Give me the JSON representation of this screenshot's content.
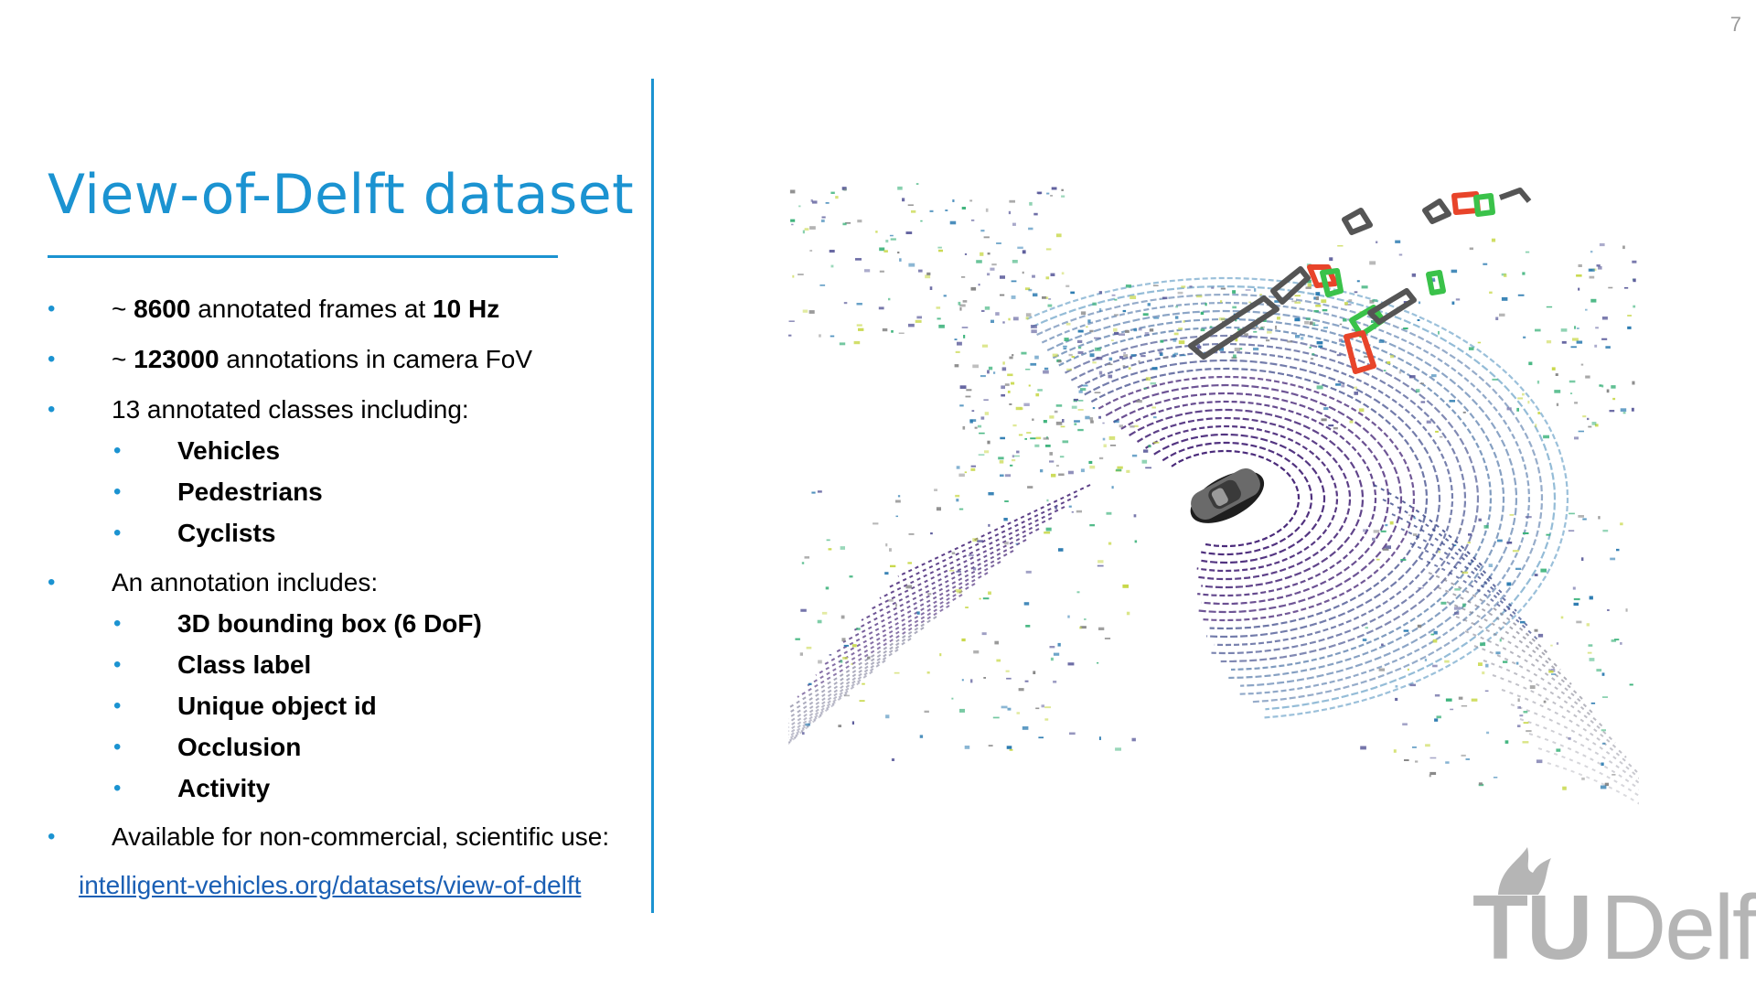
{
  "slide": {
    "page_number": "7",
    "title": "View-of-Delft dataset"
  },
  "bullets": [
    {
      "prefix": "~ ",
      "strong": "8600",
      "middle": " annotated frames at ",
      "strong2": "10 Hz",
      "suffix": ""
    },
    {
      "prefix": "~ ",
      "strong": "123000",
      "middle": " annotations in camera FoV",
      "strong2": "",
      "suffix": ""
    },
    {
      "prefix": "13 annotated classes including:",
      "strong": "",
      "middle": "",
      "strong2": "",
      "suffix": ""
    }
  ],
  "classes": [
    "Vehicles",
    "Pedestrians",
    "Cyclists"
  ],
  "annotation_intro": "An annotation includes:",
  "annotation_items": [
    "3D bounding box (6 DoF)",
    "Class label",
    "Unique object id",
    "Occlusion",
    "Activity"
  ],
  "availability": "Available for non-commercial, scientific use:",
  "link": "intelligent-vehicles.org/datasets/view-of-delft",
  "logo": {
    "tu": "TU",
    "delft": "Delft"
  },
  "colors": {
    "accent": "#1b93d1",
    "link": "#1a5fb4",
    "logo_gray": "#b5b5b5",
    "pointcloud_near": "#4a2a7a",
    "pointcloud_mid": "#2a7ab0",
    "pointcloud_far": "#3bb27a",
    "pointcloud_top": "#c8d84a",
    "box_pedestrian": "#3ac24a",
    "box_cyclist": "#e8442a",
    "box_other": "#555555"
  }
}
